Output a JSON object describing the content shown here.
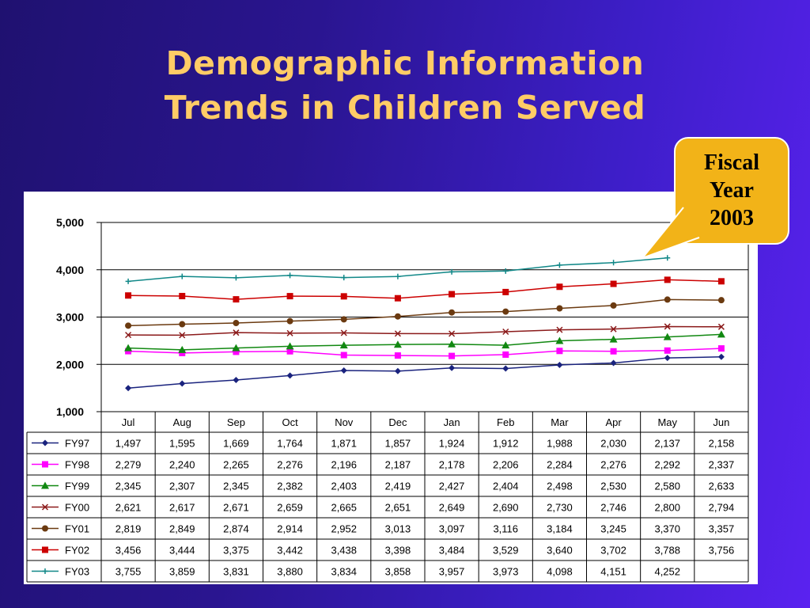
{
  "slide": {
    "title_line1": "Demographic Information",
    "title_line2": "Trends in Children Served"
  },
  "callout": {
    "line1": "Fiscal",
    "line2": "Year",
    "line3": "2003",
    "color": "#f2b318"
  },
  "colors": {
    "background": "#2a1590",
    "title": "#ffcc66",
    "chart_background": "#ffffff"
  },
  "chart_data": {
    "type": "line",
    "categories": [
      "Jul",
      "Aug",
      "Sep",
      "Oct",
      "Nov",
      "Dec",
      "Jan",
      "Feb",
      "Mar",
      "Apr",
      "May",
      "Jun"
    ],
    "ylim": [
      1000,
      5000
    ],
    "yticks": [
      "1,000",
      "2,000",
      "3,000",
      "4,000",
      "5,000"
    ],
    "grid": true,
    "legend": "data-table",
    "series": [
      {
        "name": "FY97",
        "color": "#1a237e",
        "marker": "diamond",
        "values": [
          1497,
          1595,
          1669,
          1764,
          1871,
          1857,
          1924,
          1912,
          1988,
          2030,
          2137,
          2158
        ],
        "labels": [
          "1,497",
          "1,595",
          "1,669",
          "1,764",
          "1,871",
          "1,857",
          "1,924",
          "1,912",
          "1,988",
          "2,030",
          "2,137",
          "2,158"
        ]
      },
      {
        "name": "FY98",
        "color": "#ff00ff",
        "marker": "square",
        "values": [
          2279,
          2240,
          2265,
          2276,
          2196,
          2187,
          2178,
          2206,
          2284,
          2276,
          2292,
          2337
        ],
        "labels": [
          "2,279",
          "2,240",
          "2,265",
          "2,276",
          "2,196",
          "2,187",
          "2,178",
          "2,206",
          "2,284",
          "2,276",
          "2,292",
          "2,337"
        ]
      },
      {
        "name": "FY99",
        "color": "#118811",
        "marker": "triangle",
        "values": [
          2345,
          2307,
          2345,
          2382,
          2403,
          2419,
          2427,
          2404,
          2498,
          2530,
          2580,
          2633
        ],
        "labels": [
          "2,345",
          "2,307",
          "2,345",
          "2,382",
          "2,403",
          "2,419",
          "2,427",
          "2,404",
          "2,498",
          "2,530",
          "2,580",
          "2,633"
        ]
      },
      {
        "name": "FY00",
        "color": "#8b1a1a",
        "marker": "x",
        "values": [
          2621,
          2617,
          2671,
          2659,
          2665,
          2651,
          2649,
          2690,
          2730,
          2746,
          2800,
          2794
        ],
        "labels": [
          "2,621",
          "2,617",
          "2,671",
          "2,659",
          "2,665",
          "2,651",
          "2,649",
          "2,690",
          "2,730",
          "2,746",
          "2,800",
          "2,794"
        ]
      },
      {
        "name": "FY01",
        "color": "#6b3a10",
        "marker": "circle",
        "values": [
          2819,
          2849,
          2874,
          2914,
          2952,
          3013,
          3097,
          3116,
          3184,
          3245,
          3370,
          3357
        ],
        "labels": [
          "2,819",
          "2,849",
          "2,874",
          "2,914",
          "2,952",
          "3,013",
          "3,097",
          "3,116",
          "3,184",
          "3,245",
          "3,370",
          "3,357"
        ]
      },
      {
        "name": "FY02",
        "color": "#cc0000",
        "marker": "square",
        "values": [
          3456,
          3444,
          3375,
          3442,
          3438,
          3398,
          3484,
          3529,
          3640,
          3702,
          3788,
          3756
        ],
        "labels": [
          "3,456",
          "3,444",
          "3,375",
          "3,442",
          "3,438",
          "3,398",
          "3,484",
          "3,529",
          "3,640",
          "3,702",
          "3,788",
          "3,756"
        ]
      },
      {
        "name": "FY03",
        "color": "#118888",
        "marker": "plus",
        "values": [
          3755,
          3859,
          3831,
          3880,
          3834,
          3858,
          3957,
          3973,
          4098,
          4151,
          4252,
          null
        ],
        "labels": [
          "3,755",
          "3,859",
          "3,831",
          "3,880",
          "3,834",
          "3,858",
          "3,957",
          "3,973",
          "4,098",
          "4,151",
          "4,252",
          ""
        ]
      }
    ]
  }
}
